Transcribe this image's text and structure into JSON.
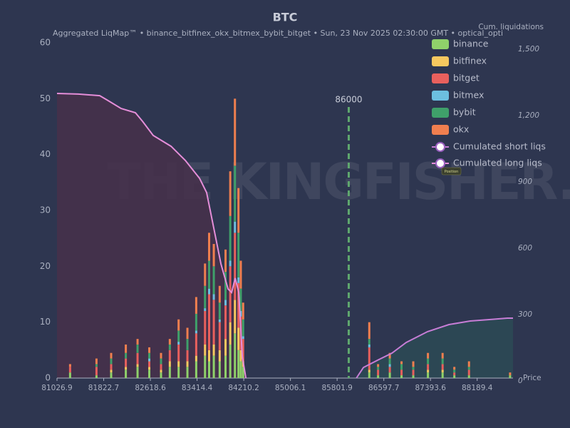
{
  "chart_data": {
    "type": "bar",
    "title": "BTC",
    "subtitle": "Aggregated LiqMap™  •  binance_bitfinex_okx_bitmex_bybit_bitget  •  Sun, 23 Nov 2025 02:30:00 GMT  •  optical_opti",
    "watermark": "THE KINGFISHER.IO",
    "tag": "Position",
    "x_label": "Price",
    "y2_label": "Cum. liquidations",
    "marker_line": {
      "x": 86000,
      "color": "#5fa86e"
    },
    "xlim": [
      81026.9,
      88800
    ],
    "xticks": [
      81026.9,
      81822.7,
      82618.6,
      83414.4,
      84210.2,
      85006.1,
      85801.9,
      86597.7,
      87393.6,
      88189.4
    ],
    "ylim": [
      0,
      60
    ],
    "yticks": [
      0,
      10,
      20,
      30,
      40,
      50,
      60
    ],
    "y2lim": [
      0,
      1516
    ],
    "y2ticks": [
      0,
      300,
      600,
      900,
      {
        "value": 1200,
        "label": "1,200"
      },
      {
        "value": 1500,
        "label": "1,500"
      }
    ],
    "x": [
      81250,
      81700,
      81950,
      82200,
      82400,
      82600,
      82800,
      82950,
      83100,
      83250,
      83400,
      83550,
      83620,
      83700,
      83800,
      83900,
      83980,
      84060,
      84120,
      84160,
      84200,
      86350,
      86500,
      86700,
      86900,
      87100,
      87350,
      87600,
      87800,
      88050,
      88750
    ],
    "series": [
      {
        "name": "binance",
        "color": "#8fd16a",
        "values": [
          1,
          0.5,
          1,
          1.5,
          2,
          1.5,
          1,
          2,
          2,
          2,
          3,
          4,
          3,
          4,
          3,
          4,
          6,
          8,
          5,
          3,
          2,
          1,
          0.5,
          1,
          0.5,
          0.5,
          1,
          1,
          0.5,
          0.5,
          0.5
        ]
      },
      {
        "name": "bitfinex",
        "color": "#f6c85f",
        "values": [
          0,
          0,
          0.5,
          0.5,
          0.5,
          0.5,
          0.5,
          1,
          1,
          1,
          1,
          2,
          2,
          2,
          2,
          3,
          4,
          6,
          4,
          2,
          1,
          0.5,
          0,
          0,
          0,
          0,
          0.5,
          0.5,
          0,
          0,
          0
        ]
      },
      {
        "name": "bitget",
        "color": "#e8605d",
        "values": [
          1,
          1.5,
          1,
          1.5,
          2,
          1,
          1,
          2,
          3,
          2,
          4,
          6,
          10,
          8,
          5,
          6,
          10,
          12,
          8,
          6,
          4,
          4,
          1,
          1,
          1,
          1,
          1,
          1,
          0.5,
          1,
          0
        ]
      },
      {
        "name": "bitmex",
        "color": "#6cbfdf",
        "values": [
          0,
          0,
          0,
          0,
          0,
          0.5,
          0,
          0,
          0.5,
          0,
          0.5,
          0.5,
          1,
          1,
          0.5,
          1,
          1,
          2,
          1,
          1,
          0.5,
          0.5,
          0,
          0.5,
          0,
          0,
          0,
          0,
          0,
          0,
          0
        ]
      },
      {
        "name": "bybit",
        "color": "#3fa06a",
        "values": [
          0,
          0.5,
          1,
          1,
          1.5,
          1,
          1,
          1,
          2,
          2,
          3,
          4,
          5,
          5,
          3,
          5,
          8,
          10,
          8,
          4,
          3,
          1,
          0.5,
          1,
          1,
          0.5,
          1,
          1,
          0.5,
          0.5,
          0
        ]
      },
      {
        "name": "okx",
        "color": "#f07f4f",
        "values": [
          0.5,
          1,
          1,
          1.5,
          1,
          1,
          1,
          1,
          2,
          2,
          3,
          4,
          5,
          4,
          3,
          4,
          8,
          12,
          8,
          5,
          3,
          3,
          0.5,
          1,
          0.5,
          1,
          1,
          1,
          0.5,
          1,
          0.5
        ]
      }
    ],
    "lines": [
      {
        "name": "Cumulated short liqs",
        "color": "#c77dd6",
        "fill": "#2c4a55",
        "axis": "y2",
        "x": [
          86130,
          86251,
          86494,
          86737,
          86980,
          87344,
          87708,
          88071,
          88436,
          88704,
          88800
        ],
        "values": [
          0,
          48,
          81,
          113,
          161,
          210,
          242,
          258,
          265,
          271,
          271
        ]
      },
      {
        "name": "Cumulated long liqs",
        "color": "#e58ed9",
        "fill": "#47304a",
        "axis": "y2",
        "x": [
          81026.9,
          81391,
          81756,
          81877,
          82120,
          82363,
          82485,
          82667,
          82971,
          83214,
          83457,
          83578,
          83700,
          83821,
          83943,
          84004,
          84064,
          84125,
          84186,
          84247
        ],
        "values": [
          1287,
          1284,
          1277,
          1258,
          1219,
          1200,
          1161,
          1097,
          1048,
          984,
          903,
          839,
          677,
          516,
          403,
          387,
          452,
          387,
          97,
          0
        ]
      }
    ]
  }
}
